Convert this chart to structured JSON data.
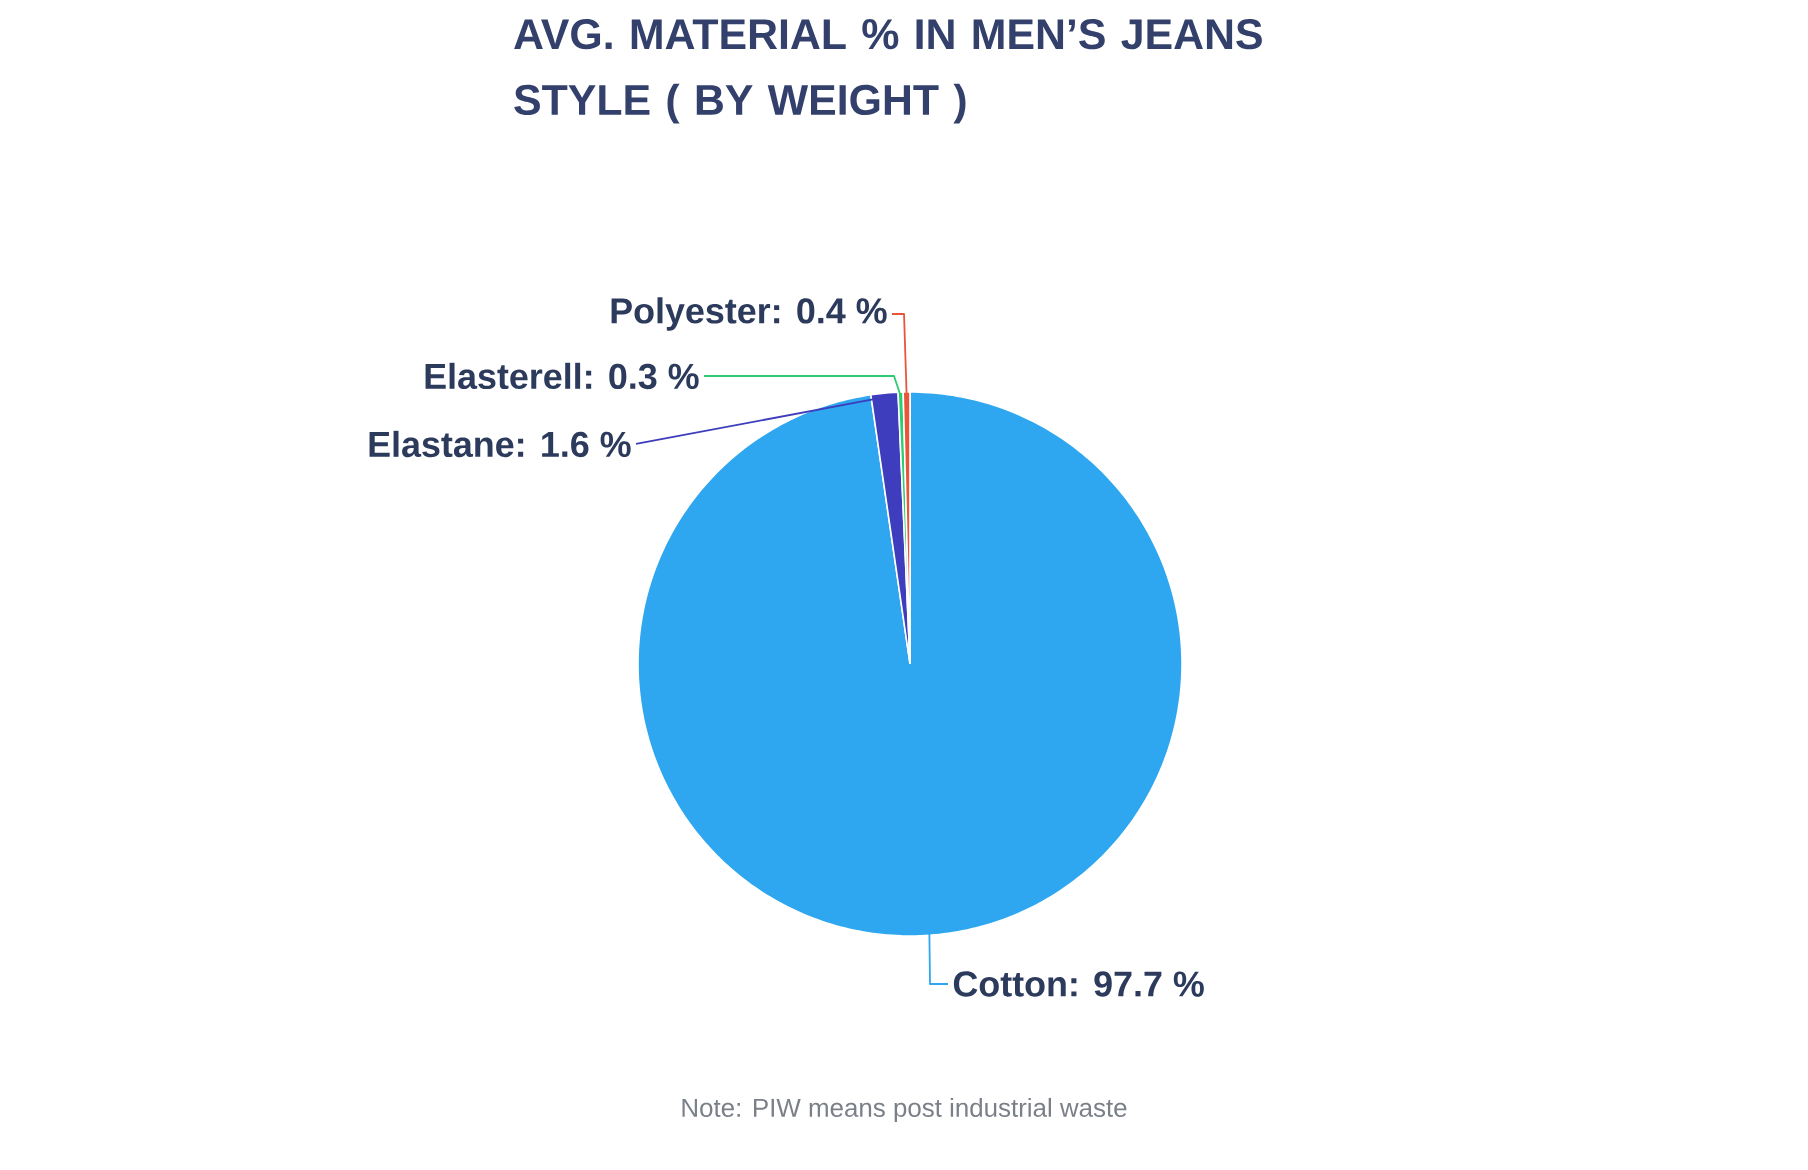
{
  "chart_data": {
    "type": "pie",
    "title": "AVG. MATERIAL % IN MEN’S JEANS STYLE ( BY WEIGHT )",
    "categories": [
      "Cotton",
      "Elastane",
      "Elasterell",
      "Polyester"
    ],
    "values": [
      97.7,
      1.6,
      0.3,
      0.4
    ],
    "colors": [
      "#2ea7f0",
      "#3d3dbd",
      "#2ecc71",
      "#e8553b"
    ],
    "value_labels": [
      ": 97.7 %",
      ": 1.6 %",
      ": 0.3 %",
      ": 0.4 %"
    ],
    "annotations": [
      "Note: PIW means post industrial waste"
    ]
  }
}
